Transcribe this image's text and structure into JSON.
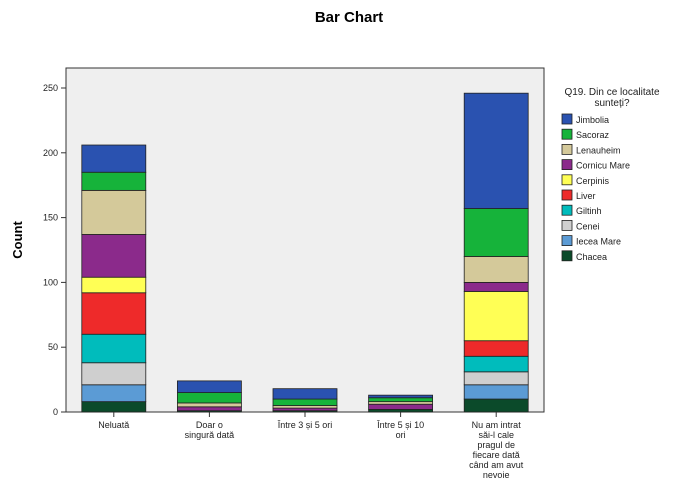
{
  "chart_data": {
    "type": "bar",
    "stacked": true,
    "title": "Bar Chart",
    "ylabel": "Count",
    "xlabel": "",
    "ylim": [
      0,
      250
    ],
    "yticks": [
      0,
      50,
      100,
      150,
      200,
      250
    ],
    "grid": false,
    "legend_position": "right",
    "legend_title": "Q19. Din ce localitate sunteți?",
    "categories": [
      [
        "Neluată"
      ],
      [
        "Doar o",
        "singură dată"
      ],
      [
        "Între 3 și 5 ori"
      ],
      [
        "Între 5 și 10",
        "ori"
      ],
      [
        "Nu am intrat",
        "săi-l cale",
        "pragul de",
        "fiecare dată",
        "când am avut",
        "nevoie"
      ]
    ],
    "series": [
      {
        "name": "Chacea",
        "color": "#0b4a2a",
        "values": [
          8,
          1,
          1,
          2,
          10
        ]
      },
      {
        "name": "Iecea Mare",
        "color": "#5b9bd5",
        "values": [
          13,
          0,
          0,
          0,
          11
        ]
      },
      {
        "name": "Cenei",
        "color": "#cfcfcf",
        "values": [
          17,
          0,
          0,
          0,
          10
        ]
      },
      {
        "name": "Giltinh",
        "color": "#00bcbc",
        "values": [
          22,
          0,
          0,
          0,
          12
        ]
      },
      {
        "name": "Liver",
        "color": "#ee2a2a",
        "values": [
          32,
          0,
          0,
          0,
          12
        ]
      },
      {
        "name": "Cerpinis",
        "color": "#ffff55",
        "values": [
          12,
          0,
          0,
          0,
          38
        ]
      },
      {
        "name": "Cornicu Mare",
        "color": "#8b2a8b",
        "values": [
          33,
          3,
          2,
          4,
          7
        ]
      },
      {
        "name": "Lenauheim",
        "color": "#d4c99a",
        "values": [
          34,
          3,
          2,
          2,
          20
        ]
      },
      {
        "name": "Sacoraz",
        "color": "#16b33a",
        "values": [
          14,
          8,
          5,
          3,
          37
        ]
      },
      {
        "name": "Jimbolia",
        "color": "#2a52b0",
        "values": [
          21,
          9,
          8,
          2,
          89
        ]
      }
    ]
  }
}
